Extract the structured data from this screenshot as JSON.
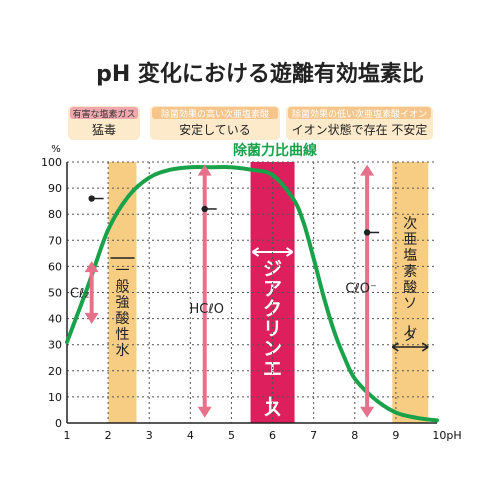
{
  "chart_data": {
    "type": "line",
    "title": "pH 変化における遊離有効塩素比",
    "y_unit": "%",
    "x_unit_suffix": "pH",
    "xlim": [
      1,
      10
    ],
    "ylim": [
      0,
      100
    ],
    "x_ticks": [
      "1",
      "2",
      "3",
      "4",
      "5",
      "6",
      "7",
      "8",
      "9",
      "10pH"
    ],
    "y_ticks": [
      "0",
      "10",
      "20",
      "30",
      "40",
      "50",
      "60",
      "70",
      "80",
      "90",
      "100"
    ],
    "grid": true,
    "series": [
      {
        "name": "除菌力比曲線",
        "color": "#1aa24a",
        "x": [
          1.0,
          1.5,
          2.0,
          2.5,
          3.0,
          3.5,
          4.0,
          4.5,
          5.0,
          5.5,
          6.0,
          6.5,
          6.75,
          7.0,
          7.25,
          7.5,
          7.75,
          8.0,
          8.5,
          9.0,
          9.5,
          10.0
        ],
        "y": [
          31,
          52,
          74,
          87,
          94,
          97,
          98,
          98,
          98,
          97,
          95,
          86,
          77,
          63,
          48,
          35,
          25,
          17,
          9,
          4,
          2,
          1
        ]
      }
    ],
    "notes": [
      {
        "head": "有害な塩素ガス",
        "body": "猛毒",
        "color": "#f0a7ad"
      },
      {
        "head": "除菌効果の高い次亜塩素酸",
        "body": "安定している",
        "color": "#f5c58c"
      },
      {
        "head": "除菌効果の低い次亜塩素酸イオン",
        "body": "イオン状態で存在 不安定",
        "color": "#f5c58c"
      }
    ],
    "bands": [
      {
        "label": "一般強酸性水",
        "ph": 2.35,
        "color": "#f7cc83"
      },
      {
        "label": "ジアクリンエース",
        "ph": 6.0,
        "color": "#dd1f5e"
      },
      {
        "label": "次亜塩素酸ソーダ",
        "ph": 9.35,
        "color": "#f7cc83"
      }
    ],
    "species": [
      {
        "label": "Cℓ₂",
        "ph": 1.6,
        "y_low": 38,
        "y_high": 62,
        "dot_y": 86
      },
      {
        "label": "HCℓO",
        "ph": 4.35,
        "y_low": 2,
        "y_high": 99,
        "dot_y": 82
      },
      {
        "label": "CℓO⁻",
        "ph": 8.3,
        "y_low": 2,
        "y_high": 99,
        "dot_y": 73
      }
    ],
    "arrow_color": "#e7708a"
  }
}
